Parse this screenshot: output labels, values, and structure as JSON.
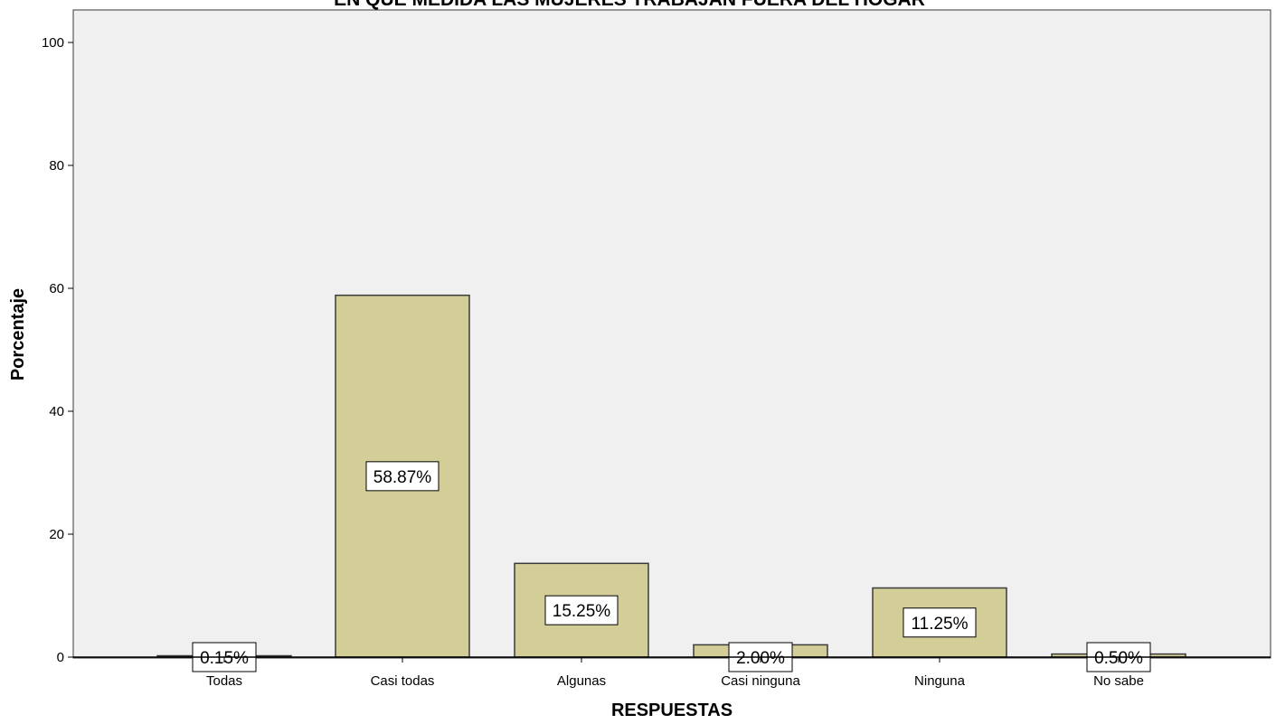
{
  "chart_data": {
    "type": "bar",
    "title": "EN QUE MEDIDA LAS  MUJERES TRABAJAN FUERA DEL HOGAR",
    "xlabel": "RESPUESTAS",
    "ylabel": "Porcentaje",
    "categories": [
      "Todas",
      "Casi todas",
      "Algunas",
      "Casi ninguna",
      "Ninguna",
      "No sabe"
    ],
    "values": [
      0.15,
      58.87,
      15.25,
      2.0,
      11.25,
      0.5
    ],
    "data_labels": [
      "0.15%",
      "58.87%",
      "15.25%",
      "2.00%",
      "11.25%",
      "0.50%"
    ],
    "ylim": [
      0,
      100
    ],
    "yticks": [
      0,
      20,
      40,
      60,
      80,
      100
    ],
    "grid": false,
    "colors": {
      "plot_background": "#f0f0f0",
      "bar_fill": "#d3ce97",
      "bar_stroke": "#3a3a3a",
      "label_box": "#ffffff"
    }
  }
}
